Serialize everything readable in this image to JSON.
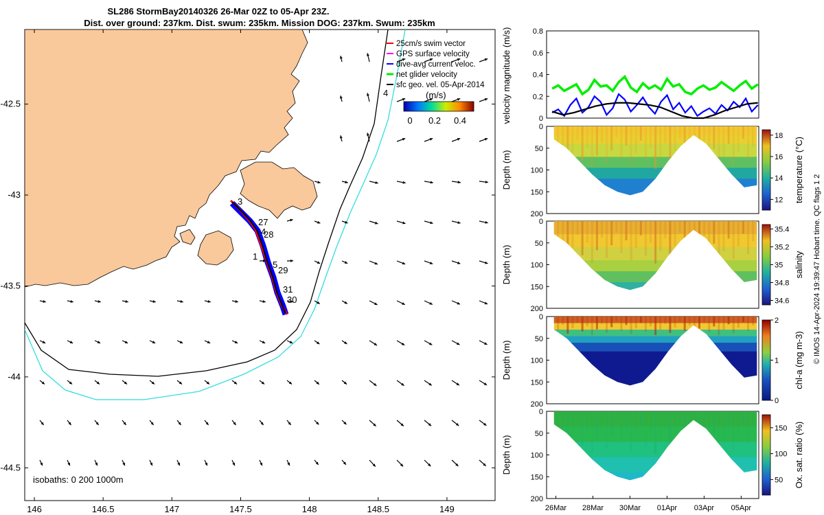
{
  "title_line1": "SL286 StormBay20140326 26-Mar 02Z to 05-Apr 23Z.",
  "title_line2": "Dist. over ground: 237km. Dist. swum: 235km. Mission DOG: 237km. Swum: 235km",
  "footer_text": "© IMOS 14-Apr-2024 19:39:47 Hobart time. QC flags 1  2",
  "colors": {
    "land": "#F9C89B",
    "track": "#ff0000",
    "dive": "#0000ff",
    "net": "#00ee00",
    "contour200": "#000000",
    "contour1000": "#33dddd"
  },
  "chart_data": [
    {
      "type": "map",
      "name": "track map",
      "x_ticks": [
        "146",
        "146.5",
        "147",
        "147.5",
        "148",
        "148.5",
        "149"
      ],
      "x_values": [
        146,
        146.5,
        147,
        147.5,
        148,
        148.5,
        149
      ],
      "y_ticks": [
        "-42.5",
        "-43",
        "-43.5",
        "-44",
        "-44.5"
      ],
      "y_values": [
        -42.5,
        -43,
        -43.5,
        -44,
        -44.5
      ],
      "xlim": [
        145.93,
        149.35
      ],
      "ylim": [
        -44.68,
        -42.09
      ],
      "track_day_labels": [
        "3",
        "27",
        "4",
        "28",
        "1",
        "5",
        "29",
        "31",
        "30",
        "4"
      ],
      "isobaths_label": "isobaths: 0  200  1000m",
      "legend": [
        "25cm/s swim vector",
        "GPS surface velocity",
        "dive-avg current veloc.",
        "net glider velocity",
        "sfc geo. vel. 05-Apr-2014"
      ],
      "colorbar": {
        "label": "(m/s)",
        "ticks": [
          "0",
          "0.2",
          "0.4"
        ],
        "range": [
          0,
          0.5
        ]
      }
    },
    {
      "type": "line",
      "name": "velocity magnitude",
      "ylabel": "velocity magnitude (m/s)",
      "ylim": [
        0,
        0.8
      ],
      "y_ticks": [
        "0",
        "0.2",
        "0.4",
        "0.6",
        "0.8"
      ],
      "series": [
        {
          "name": "net glider velocity",
          "color": "#00ee00",
          "values": [
            0.27,
            0.3,
            0.25,
            0.28,
            0.31,
            0.22,
            0.26,
            0.35,
            0.29,
            0.3,
            0.25,
            0.33,
            0.38,
            0.28,
            0.24,
            0.32,
            0.27,
            0.3,
            0.26,
            0.36,
            0.29,
            0.31,
            0.24,
            0.22,
            0.27,
            0.3,
            0.26,
            0.28,
            0.33,
            0.29,
            0.25,
            0.3,
            0.34,
            0.27,
            0.31
          ]
        },
        {
          "name": "dive-avg current veloc.",
          "color": "#0000ff",
          "values": [
            0.05,
            0.08,
            0.02,
            0.12,
            0.18,
            0.05,
            0.1,
            0.2,
            0.15,
            0.03,
            0.09,
            0.22,
            0.17,
            0.06,
            0.12,
            0.19,
            0.1,
            0.04,
            0.15,
            0.21,
            0.08,
            0.14,
            0.05,
            0.11,
            0.02,
            0.06,
            0.09,
            0.04,
            0.12,
            0.07,
            0.15,
            0.1,
            0.18,
            0.06,
            0.12
          ]
        },
        {
          "name": "sfc geo. vel.",
          "color": "#000000",
          "values": [
            0.06,
            0.03,
            0.05,
            0.08,
            0.11,
            0.13,
            0.14,
            0.14,
            0.13,
            0.12,
            0.1,
            0.06,
            0.02,
            0.0,
            0.0,
            0.03,
            0.07,
            0.1,
            0.13,
            0.14
          ]
        }
      ]
    },
    {
      "type": "heatmap",
      "name": "temperature",
      "ylabel": "Depth (m)",
      "clabel": "temperature (°C)",
      "y_ticks": [
        "0",
        "50",
        "100",
        "150",
        "200"
      ],
      "c_ticks": [
        "12",
        "14",
        "16",
        "18"
      ],
      "crange": [
        11,
        18.5
      ]
    },
    {
      "type": "heatmap",
      "name": "salinity",
      "ylabel": "Depth (m)",
      "clabel": "salinity",
      "y_ticks": [
        "0",
        "50",
        "100",
        "150",
        "200"
      ],
      "c_ticks": [
        "34.6",
        "34.8",
        "35",
        "35.2",
        "35.4"
      ],
      "crange": [
        34.55,
        35.45
      ]
    },
    {
      "type": "heatmap",
      "name": "chl-a",
      "ylabel": "Depth (m)",
      "clabel": "chl-a (mg m-3)",
      "y_ticks": [
        "0",
        "50",
        "100",
        "150",
        "200"
      ],
      "c_ticks": [
        "0",
        "1",
        "2"
      ],
      "crange": [
        0,
        2
      ]
    },
    {
      "type": "heatmap",
      "name": "oxygen",
      "ylabel": "Depth (m)",
      "clabel": "Ox. sat. ratio (%)",
      "y_ticks": [
        "0",
        "50",
        "100",
        "150",
        "200"
      ],
      "c_ticks": [
        "50",
        "100",
        "150"
      ],
      "crange": [
        20,
        175
      ]
    },
    {
      "type": "axis",
      "name": "time axis",
      "x_ticks": [
        "26Mar",
        "28Mar",
        "30Mar",
        "01Apr",
        "03Apr",
        "05Apr"
      ],
      "x_days": [
        0,
        2,
        4,
        6,
        8,
        10
      ],
      "xlim": [
        -0.5,
        10.95
      ],
      "dive_depth_profile": [
        30,
        50,
        80,
        110,
        135,
        150,
        158,
        150,
        120,
        80,
        45,
        20,
        40,
        75,
        110,
        140,
        135
      ]
    }
  ]
}
